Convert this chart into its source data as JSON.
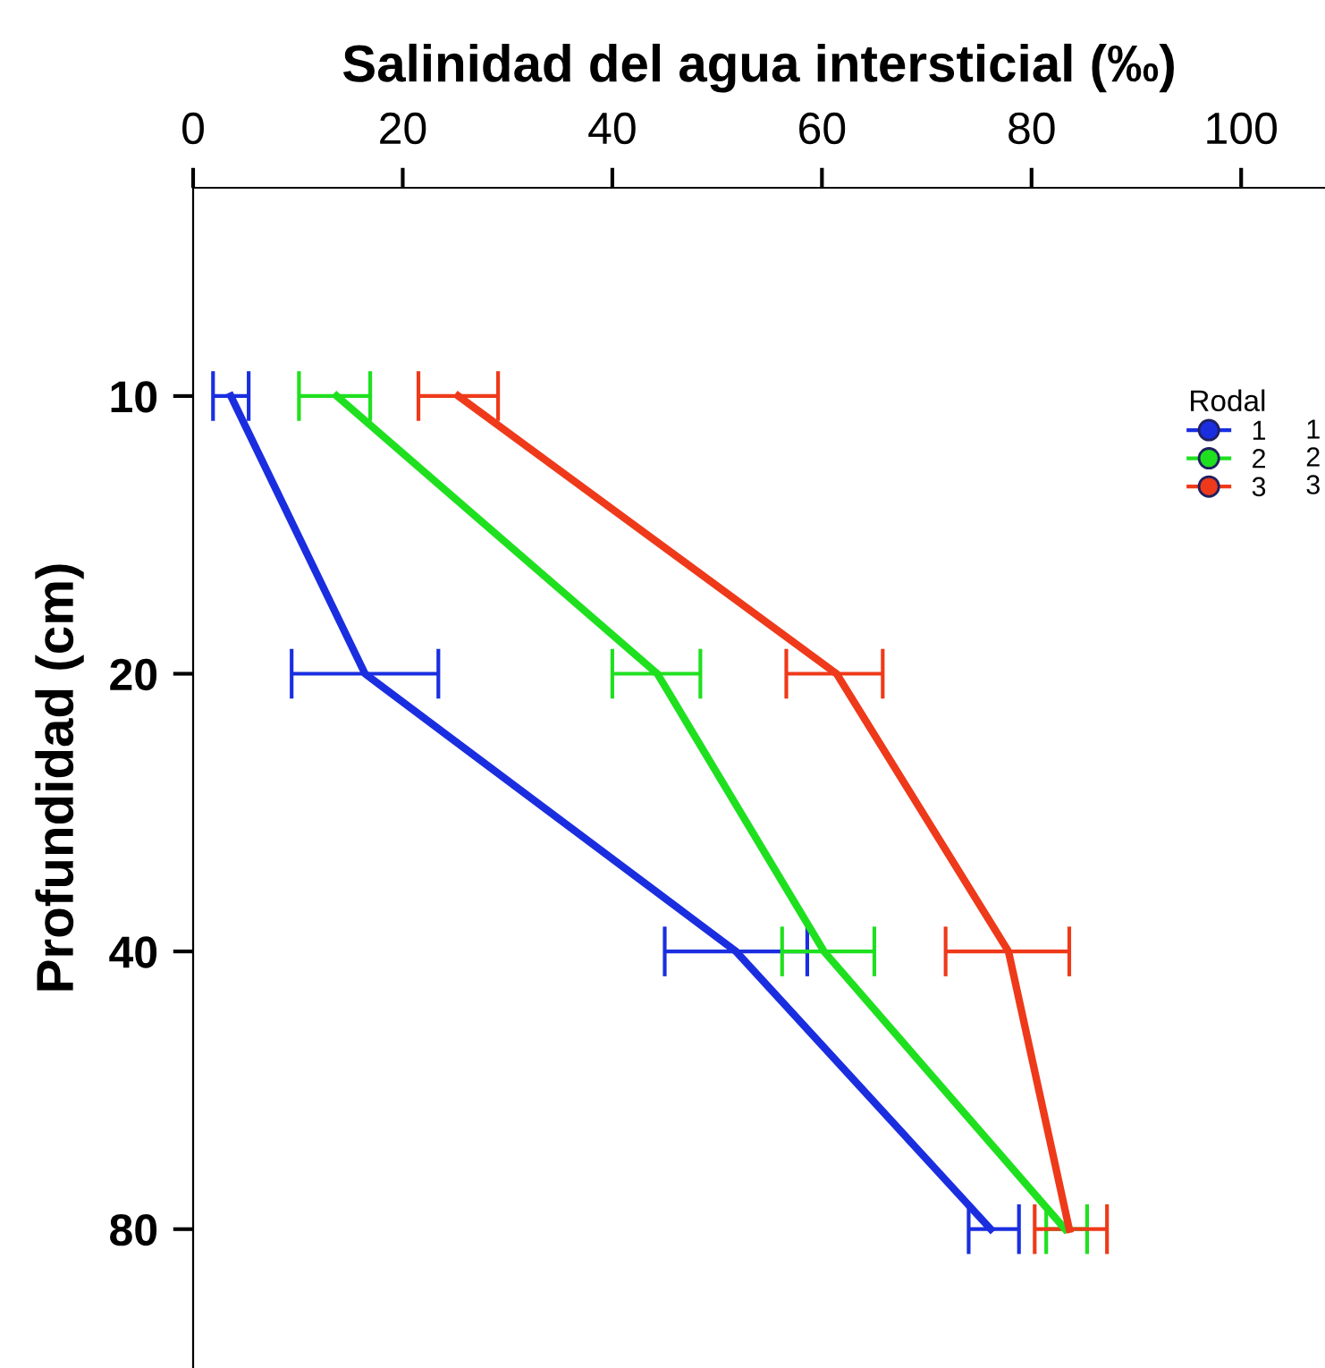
{
  "chart_data": {
    "type": "line",
    "orientation": "horizontal",
    "xlabel": "Salinidad del agua intersticial (‰)",
    "ylabel": "Profundidad (cm)",
    "legend_title": "Rodal",
    "legend": "top right",
    "grid": false,
    "categories": [
      "10",
      "20",
      "40",
      "80"
    ],
    "annotations": [
      "1",
      "2",
      "3"
    ],
    "xlim": [
      0,
      108
    ],
    "xticks": [
      0,
      20,
      40,
      60,
      80,
      100
    ],
    "series": [
      {
        "name": "1",
        "color": "#1a2ee0",
        "values": [
          3.6,
          16.4,
          51.8,
          76.1
        ],
        "errors": [
          [
            1.9,
            5.3
          ],
          [
            9.4,
            23.4
          ],
          [
            45.0,
            58.6
          ],
          [
            74.0,
            78.8
          ]
        ]
      },
      {
        "name": "2",
        "color": "#1fe01f",
        "values": [
          13.7,
          44.3,
          60.2,
          83.2
        ],
        "errors": [
          [
            10.1,
            16.9
          ],
          [
            40.0,
            48.4
          ],
          [
            56.2,
            65.0
          ],
          [
            81.4,
            85.3
          ]
        ]
      },
      {
        "name": "3",
        "color": "#ee3a1a",
        "values": [
          25.3,
          61.4,
          77.8,
          83.6
        ],
        "errors": [
          [
            21.5,
            29.1
          ],
          [
            56.6,
            65.8
          ],
          [
            71.8,
            83.6
          ],
          [
            80.3,
            87.2
          ]
        ]
      }
    ]
  }
}
